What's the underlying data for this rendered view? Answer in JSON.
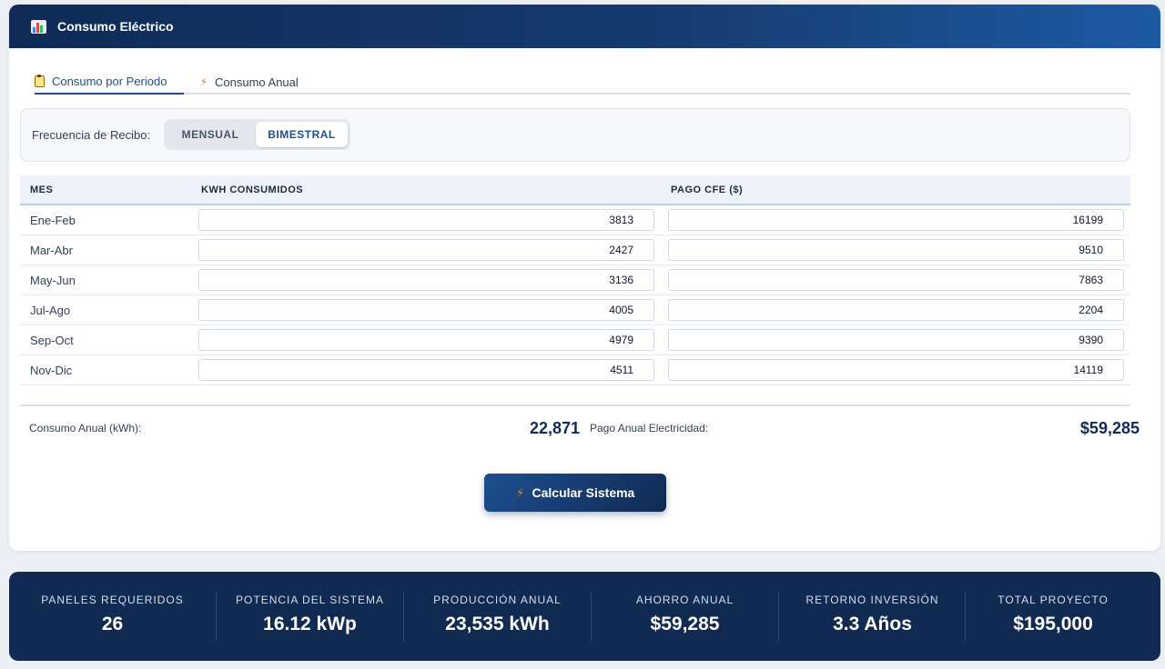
{
  "card": {
    "title": "Consumo Eléctrico",
    "title_icon": "bar-chart-icon"
  },
  "tabs": [
    {
      "label": "Consumo por Periodo",
      "icon": "clipboard-icon",
      "active": true
    },
    {
      "label": "Consumo Anual",
      "icon": "lightning-icon",
      "active": false
    }
  ],
  "frequency": {
    "label": "Frecuencia de Recibo:",
    "options": [
      "MENSUAL",
      "BIMESTRAL"
    ],
    "selected": "BIMESTRAL"
  },
  "table": {
    "headers": [
      "MES",
      "KWH CONSUMIDOS",
      "PAGO CFE ($)"
    ],
    "rows": [
      {
        "mes": "Ene-Feb",
        "kwh": "3813",
        "pago": "16199"
      },
      {
        "mes": "Mar-Abr",
        "kwh": "2427",
        "pago": "9510"
      },
      {
        "mes": "May-Jun",
        "kwh": "3136",
        "pago": "7863"
      },
      {
        "mes": "Jul-Ago",
        "kwh": "4005",
        "pago": "2204"
      },
      {
        "mes": "Sep-Oct",
        "kwh": "4979",
        "pago": "9390"
      },
      {
        "mes": "Nov-Dic",
        "kwh": "4511",
        "pago": "14119"
      }
    ]
  },
  "summary": {
    "consumo_label": "Consumo Anual (kWh):",
    "consumo_value": "22,871",
    "pago_label": "Pago Anual Electricidad:",
    "pago_value": "$59,285"
  },
  "calc_button": {
    "label": "Calcular Sistema",
    "icon": "lightning-icon"
  },
  "stats": [
    {
      "label": "PANELES REQUERIDOS",
      "value": "26"
    },
    {
      "label": "POTENCIA DEL SISTEMA",
      "value": "16.12 kWp"
    },
    {
      "label": "PRODUCCIÓN ANUAL",
      "value": "23,535 kWh"
    },
    {
      "label": "AHORRO ANUAL",
      "value": "$59,285"
    },
    {
      "label": "RETORNO INVERSIÓN",
      "value": "3.3 Años"
    },
    {
      "label": "TOTAL PROYECTO",
      "value": "$195,000"
    }
  ],
  "colors": {
    "header_dark": "#0f2b56",
    "header_light": "#1d5aa3",
    "accent": "#1d4f91",
    "stats_bg": "#102a52",
    "bolt": "#ea7a1a"
  }
}
